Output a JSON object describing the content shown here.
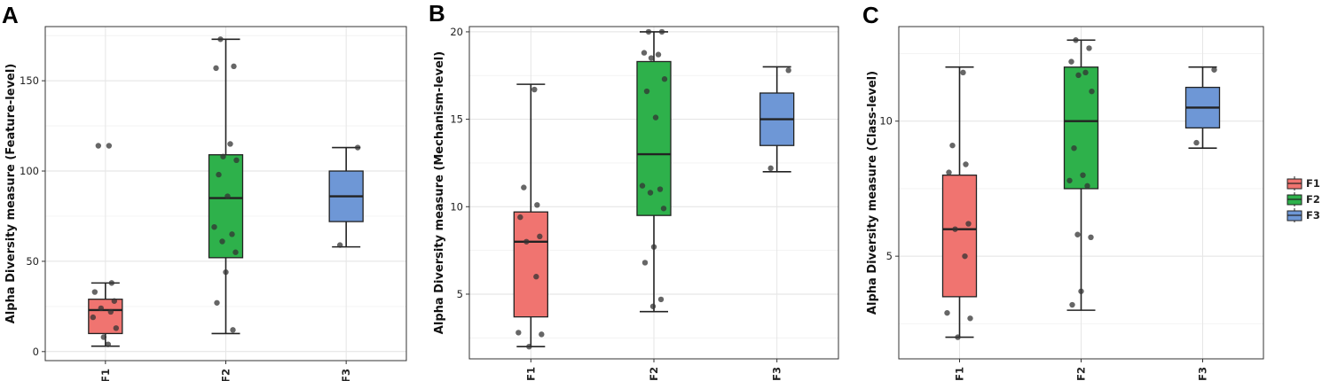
{
  "colors": {
    "F1": "#F07470",
    "F2": "#2EB14B",
    "F3": "#6E97D6",
    "points": "#333333"
  },
  "legend": {
    "items": [
      "F1",
      "F2",
      "F3"
    ],
    "placement": "right"
  },
  "chart_data": [
    {
      "panel": "A",
      "type": "box",
      "ylabel": "Alpha Diversity measure (Feature-level)",
      "categories": [
        "F1",
        "F2",
        "F3"
      ],
      "ylim": [
        -5,
        180
      ],
      "yticks": [
        0,
        50,
        100,
        150
      ],
      "grid": true,
      "boxes": [
        {
          "name": "F1",
          "min": 3,
          "q1": 10,
          "median": 23,
          "q3": 29,
          "max": 38
        },
        {
          "name": "F2",
          "min": 10,
          "q1": 52,
          "median": 85,
          "q3": 109,
          "max": 173
        },
        {
          "name": "F3",
          "min": 58,
          "q1": 72,
          "median": 86,
          "q3": 100,
          "max": 113
        }
      ],
      "points": [
        {
          "cat": "F1",
          "y": [
            114,
            114,
            38,
            33,
            28,
            24,
            22,
            19,
            13,
            8,
            4
          ]
        },
        {
          "cat": "F2",
          "y": [
            173,
            158,
            157,
            115,
            108,
            106,
            98,
            86,
            69,
            65,
            61,
            55,
            44,
            27,
            12
          ]
        },
        {
          "cat": "F3",
          "y": [
            113,
            59
          ]
        }
      ]
    },
    {
      "panel": "B",
      "type": "box",
      "ylabel": "Alpha Diversity measure (Mechanism-level)",
      "categories": [
        "F1",
        "F2",
        "F3"
      ],
      "ylim": [
        1.3,
        20.3
      ],
      "yticks": [
        5,
        10,
        15,
        20
      ],
      "grid": true,
      "boxes": [
        {
          "name": "F1",
          "min": 2,
          "q1": 3.7,
          "median": 8,
          "q3": 9.7,
          "max": 17
        },
        {
          "name": "F2",
          "min": 4,
          "q1": 9.5,
          "median": 13,
          "q3": 18.3,
          "max": 20
        },
        {
          "name": "F3",
          "min": 12,
          "q1": 13.5,
          "median": 15,
          "q3": 16.5,
          "max": 18
        }
      ],
      "points": [
        {
          "cat": "F1",
          "y": [
            16.7,
            11.1,
            10.1,
            9.4,
            8.3,
            8.0,
            6.0,
            2.8,
            2.7,
            2.0
          ]
        },
        {
          "cat": "F2",
          "y": [
            20,
            20,
            18.8,
            18.7,
            18.5,
            17.3,
            16.6,
            15.1,
            11.2,
            11.0,
            10.8,
            9.9,
            7.7,
            6.8,
            4.7,
            4.3
          ]
        },
        {
          "cat": "F3",
          "y": [
            17.8,
            12.2
          ]
        }
      ]
    },
    {
      "panel": "C",
      "type": "box",
      "ylabel": "Alpha Diversity measure (Class-level)",
      "categories": [
        "F1",
        "F2",
        "F3"
      ],
      "ylim": [
        1.2,
        13.5
      ],
      "yticks": [
        5,
        10
      ],
      "grid": true,
      "boxes": [
        {
          "name": "F1",
          "min": 2,
          "q1": 3.5,
          "median": 6,
          "q3": 8,
          "max": 12
        },
        {
          "name": "F2",
          "min": 3,
          "q1": 7.5,
          "median": 10,
          "q3": 12,
          "max": 13
        },
        {
          "name": "F3",
          "min": 9,
          "q1": 9.75,
          "median": 10.5,
          "q3": 11.25,
          "max": 12
        }
      ],
      "points": [
        {
          "cat": "F1",
          "y": [
            11.8,
            9.1,
            8.4,
            8.1,
            6.2,
            6.0,
            5.0,
            2.9,
            2.7,
            2.0
          ]
        },
        {
          "cat": "F2",
          "y": [
            13,
            12.7,
            12.2,
            11.8,
            11.7,
            11.1,
            9.0,
            8.0,
            7.8,
            7.6,
            5.8,
            5.7,
            3.7,
            3.2
          ]
        },
        {
          "cat": "F3",
          "y": [
            11.9,
            9.2
          ]
        }
      ]
    }
  ]
}
